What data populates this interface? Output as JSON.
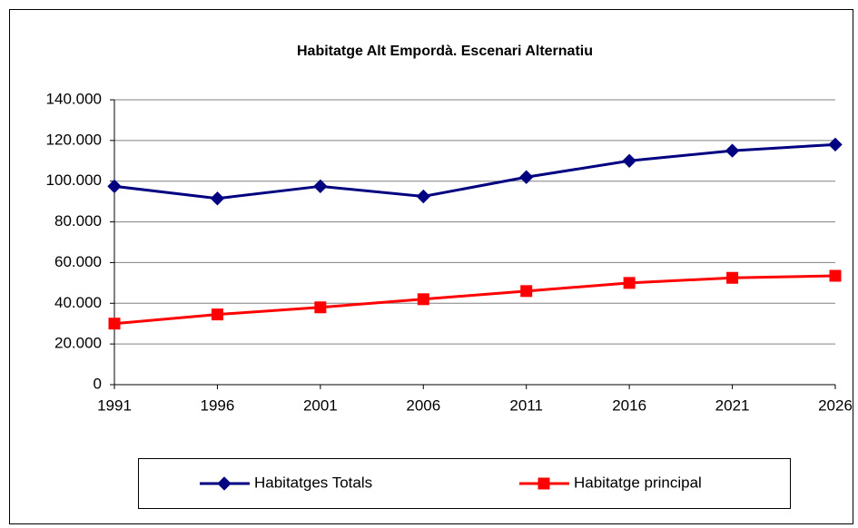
{
  "chart_data": {
    "type": "line",
    "title": "Habitatge Alt Empordà. Escenari Alternatiu",
    "categories": [
      "1991",
      "1996",
      "2001",
      "2006",
      "2011",
      "2016",
      "2021",
      "2026"
    ],
    "series": [
      {
        "name": "Habitatges Totals",
        "color": "#000080",
        "marker": "diamond",
        "values": [
          97500,
          91500,
          97500,
          92500,
          102000,
          110000,
          115000,
          118000
        ]
      },
      {
        "name": "Habitatge principal",
        "color": "#ff0000",
        "marker": "square",
        "values": [
          30000,
          34500,
          38000,
          42000,
          46000,
          50000,
          52500,
          53500
        ]
      }
    ],
    "ylim": [
      0,
      140000
    ],
    "yticks": [
      0,
      {
        "value": 20000,
        "label": "20.000"
      },
      {
        "value": 40000,
        "label": "40.000"
      },
      {
        "value": 60000,
        "label": "60.000"
      },
      {
        "value": 80000,
        "label": "80.000"
      },
      {
        "value": 100000,
        "label": "100.000"
      },
      {
        "value": 120000,
        "label": "120.000"
      },
      {
        "value": 140000,
        "label": "140.000"
      }
    ],
    "grid": true,
    "legend": "bottom"
  }
}
